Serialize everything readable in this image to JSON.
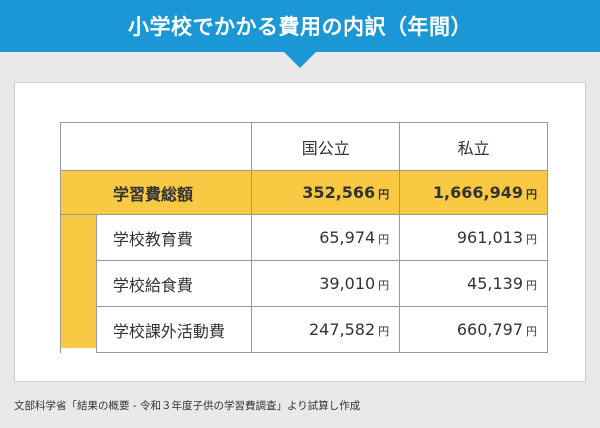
{
  "title": "小学校でかかる費用の内訳（年間）",
  "table": {
    "columns": [
      "国公立",
      "私立"
    ],
    "total": {
      "label": "学習費総額",
      "public": "352,566",
      "private": "1,666,949"
    },
    "rows": [
      {
        "label": "学校教育費",
        "public": "65,974",
        "private": "961,013"
      },
      {
        "label": "学校給食費",
        "public": "39,010",
        "private": "45,139"
      },
      {
        "label": "学校課外活動費",
        "public": "247,582",
        "private": "660,797"
      }
    ],
    "unit": "円"
  },
  "source": "文部科学省「結果の概要 - 令和３年度子供の学習費調査」より試算し作成",
  "colors": {
    "title_bg": "#1c97d6",
    "highlight": "#fac944",
    "background": "#e9e9e9"
  }
}
